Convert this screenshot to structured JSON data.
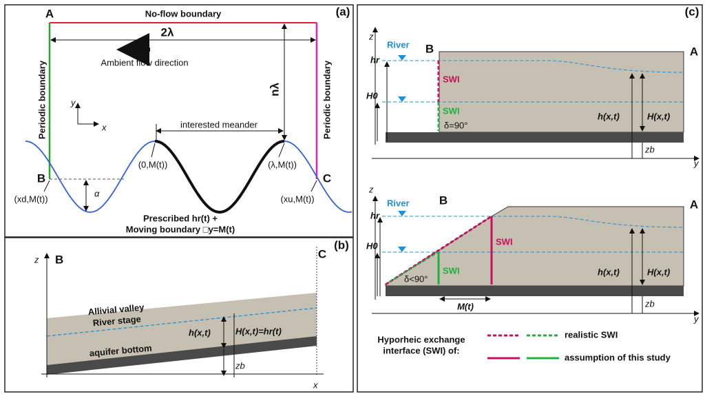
{
  "panel_a": {
    "tag": "(a)",
    "top_boundary": "No-flow boundary",
    "corner_a": "A",
    "width": "2λ",
    "flow": "Ambient flow direction",
    "left_boundary": "Periodic boundary",
    "right_boundary": "Periodic boundary",
    "height": "nλ",
    "axis_y": "y",
    "axis_x": "x",
    "meander": "interested meander",
    "point_0": "(0,M(t))",
    "point_l": "(λ,M(t))",
    "corner_b": "B",
    "corner_c": "C",
    "amplitude": "α",
    "point_d": "(xd,M(t))",
    "point_u": "(xu,M(t))",
    "caption_1": "Prescribed hr(t) +",
    "caption_2": "Moving boundary □y=M(t)"
  },
  "panel_b": {
    "tag": "(b)",
    "axis_z": "z",
    "corner_b": "B",
    "corner_c": "C",
    "valley": "Allivial valley",
    "stage": "River stage",
    "depth": "h(x,t)",
    "head": "H(x,t)=hr(t)",
    "bottom": "aquifer bottom",
    "zb": "zb",
    "axis_x": "x"
  },
  "panel_c": {
    "tag": "(c)",
    "top": {
      "axis_z": "z",
      "river": "River",
      "corner_b": "B",
      "corner_a": "A",
      "hr": "hr",
      "h0": "H0",
      "swi_1": "SWI",
      "swi_2": "SWI",
      "angle": "δ=90°",
      "depth": "h(x,t)",
      "head": "H(x,t)",
      "zb": "zb",
      "axis_y": "y"
    },
    "bottom": {
      "axis_z": "z",
      "river": "River",
      "corner_b": "B",
      "corner_a": "A",
      "hr": "hr",
      "h0": "H0",
      "swi_1": "SWI",
      "swi_2": "SWI",
      "angle": "δ<90°",
      "depth": "h(x,t)",
      "head": "H(x,t)",
      "mt": "M(t)",
      "zb": "zb",
      "axis_y": "y"
    },
    "legend": {
      "title_1": "Hyporheic exchange",
      "title_2": "interface (SWI) of:",
      "realistic": "realistic SWI",
      "assumption": "assumption of this study"
    }
  }
}
